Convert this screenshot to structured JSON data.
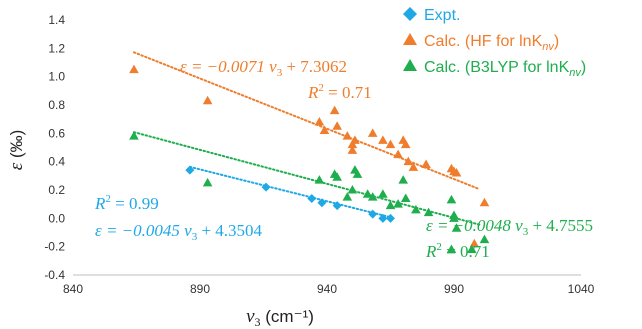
{
  "chart_data": {
    "type": "scatter",
    "xlabel_symbol": "ν",
    "xlabel_subscript": "3",
    "xlabel_unit": " (cm⁻¹)",
    "ylabel_symbol": "ε",
    "ylabel_unit": " (‰)",
    "xlim": [
      840,
      1040
    ],
    "ylim": [
      -0.4,
      1.4
    ],
    "x_ticks": [
      840,
      890,
      940,
      990,
      1040
    ],
    "y_ticks": [
      -0.4,
      -0.2,
      0.0,
      0.2,
      0.4,
      0.6,
      0.8,
      1.0,
      1.2,
      1.4
    ],
    "x_tick_labels": [
      "840",
      "890",
      "940",
      "990",
      "1040"
    ],
    "y_tick_labels": [
      "-0.4",
      "-0.2",
      "0.0",
      "0.2",
      "0.4",
      "0.6",
      "0.8",
      "1.0",
      "1.2",
      "1.4"
    ],
    "grid": false,
    "legend_position": "top-right",
    "series": [
      {
        "name": "Expt.",
        "marker": "diamond",
        "color": "#1fa8e6",
        "points": [
          [
            886,
            0.34
          ],
          [
            916,
            0.22
          ],
          [
            934,
            0.14
          ],
          [
            938,
            0.11
          ],
          [
            944,
            0.09
          ],
          [
            958,
            0.03
          ],
          [
            962,
            0.0
          ],
          [
            965,
            0.0
          ]
        ],
        "fit": {
          "slope": -0.0045,
          "intercept": 4.3504,
          "x_range": [
            886,
            965
          ]
        },
        "equation": {
          "pre": "ε = −0.0045 ",
          "var": "ν",
          "sub": "3",
          "post": " + 4.3504"
        },
        "r2": {
          "pre": "R",
          "sup": "2",
          "post": " = 0.99"
        }
      },
      {
        "name": "Calc. (HF for lnK",
        "name_sub": "nv",
        "name_end": ")",
        "marker": "triangle",
        "color": "#ef7d2d",
        "points": [
          [
            864,
            1.05
          ],
          [
            893,
            0.83
          ],
          [
            937,
            0.68
          ],
          [
            939,
            0.62
          ],
          [
            943,
            0.76
          ],
          [
            944,
            0.65
          ],
          [
            948,
            0.58
          ],
          [
            950,
            0.52
          ],
          [
            950,
            0.48
          ],
          [
            951,
            0.55
          ],
          [
            958,
            0.6
          ],
          [
            962,
            0.55
          ],
          [
            965,
            0.52
          ],
          [
            968,
            0.45
          ],
          [
            970,
            0.55
          ],
          [
            971,
            0.52
          ],
          [
            972,
            0.4
          ],
          [
            974,
            0.36
          ],
          [
            979,
            0.38
          ],
          [
            989,
            0.35
          ],
          [
            990,
            0.33
          ],
          [
            991,
            0.32
          ],
          [
            998,
            -0.18
          ],
          [
            1002,
            0.11
          ]
        ],
        "fit": {
          "slope": -0.0071,
          "intercept": 7.3062,
          "x_range": [
            864,
            1000
          ]
        },
        "equation": {
          "pre": "ε = −0.0071 ",
          "var": "ν",
          "sub": "3",
          "post": " + 7.3062"
        },
        "r2": {
          "pre": "R",
          "sup": "2",
          "post": " = 0.71"
        }
      },
      {
        "name": "Calc. (B3LYP for lnK",
        "name_sub": "nv",
        "name_end": ")",
        "marker": "triangle",
        "color": "#1eae4e",
        "points": [
          [
            864,
            0.58
          ],
          [
            893,
            0.25
          ],
          [
            937,
            0.27
          ],
          [
            943,
            0.31
          ],
          [
            944,
            0.29
          ],
          [
            948,
            0.15
          ],
          [
            950,
            0.2
          ],
          [
            951,
            0.34
          ],
          [
            952,
            0.31
          ],
          [
            956,
            0.17
          ],
          [
            958,
            0.15
          ],
          [
            962,
            0.17
          ],
          [
            965,
            0.09
          ],
          [
            968,
            0.1
          ],
          [
            970,
            0.27
          ],
          [
            971,
            0.14
          ],
          [
            975,
            0.06
          ],
          [
            980,
            0.04
          ],
          [
            989,
            0.13
          ],
          [
            989,
            -0.22
          ],
          [
            990,
            0.02
          ],
          [
            990,
            0.0
          ],
          [
            991,
            -0.07
          ],
          [
            997,
            -0.22
          ],
          [
            1002,
            -0.15
          ]
        ],
        "fit": {
          "slope": -0.0048,
          "intercept": 4.7555,
          "x_range": [
            864,
            1000
          ]
        },
        "equation": {
          "pre": "ε = −0.0048 ",
          "var": "ν",
          "sub": "3",
          "post": " + 4.7555"
        },
        "r2": {
          "pre": "R",
          "sup": "2",
          "post": " = 0.71"
        }
      }
    ]
  }
}
